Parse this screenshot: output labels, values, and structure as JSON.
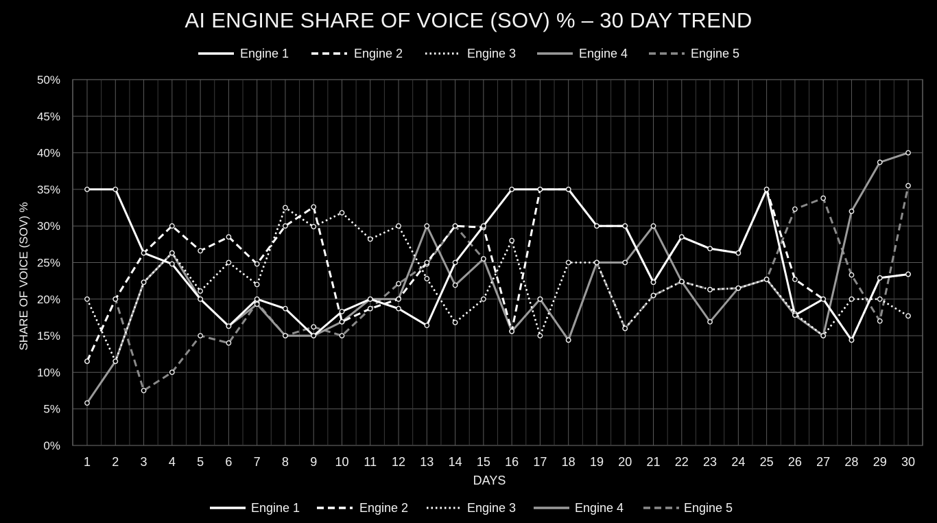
{
  "chart_data": {
    "type": "line",
    "title": "AI ENGINE SHARE OF VOICE (SOV) % – 30 DAY TREND",
    "xlabel": "DAYS",
    "ylabel": "SHARE OF VOICE (SOV) %",
    "x": [
      1,
      2,
      3,
      4,
      5,
      6,
      7,
      8,
      9,
      10,
      11,
      12,
      13,
      14,
      15,
      16,
      17,
      18,
      19,
      20,
      21,
      22,
      23,
      24,
      25,
      26,
      27,
      28,
      29,
      30
    ],
    "ylim": [
      0,
      50
    ],
    "yticks": [
      "0%",
      "5%",
      "10%",
      "15%",
      "20%",
      "25%",
      "30%",
      "35%",
      "40%",
      "45%",
      "50%"
    ],
    "grid": true,
    "legend": "top and bottom",
    "series": [
      {
        "name": "Engine 1",
        "color": "#ffffff",
        "dash": "solid",
        "values": [
          35,
          35,
          26.3,
          24.8,
          20,
          16.3,
          20,
          18.7,
          15,
          18.3,
          20,
          18.7,
          16.4,
          25,
          30,
          35,
          35,
          35,
          30,
          30,
          22.3,
          28.5,
          26.9,
          26.3,
          35,
          17.8,
          20,
          14.4,
          22.9,
          23.4
        ]
      },
      {
        "name": "Engine 2",
        "color": "#ffffff",
        "dash": "dashed",
        "values": [
          11.5,
          20,
          26.3,
          30,
          26.6,
          28.5,
          24.8,
          30,
          32.6,
          16.9,
          18.7,
          20,
          25,
          30,
          29.8,
          15.6,
          35,
          35,
          30,
          30,
          22.3,
          28.5,
          26.9,
          26.3,
          35,
          22.7,
          20,
          14.4,
          22.9,
          23.4
        ]
      },
      {
        "name": "Engine 3",
        "color": "#ffffff",
        "dash": "dotted",
        "values": [
          20,
          11.5,
          22.3,
          26.3,
          21.1,
          25,
          22,
          32.5,
          29.9,
          31.8,
          28.2,
          30,
          22.8,
          16.8,
          20,
          28,
          15,
          25,
          25,
          16,
          20.5,
          22.4,
          21.3,
          21.5,
          22.7,
          18,
          15,
          20,
          20,
          17.7
        ]
      },
      {
        "name": "Engine 4",
        "color": "#9a9a9a",
        "dash": "solid",
        "values": [
          5.8,
          11.5,
          22.3,
          26.3,
          20,
          16.3,
          19.3,
          15,
          15,
          16.9,
          20,
          20,
          30,
          21.9,
          25.5,
          15.6,
          20,
          14.4,
          25,
          25,
          30,
          22.4,
          16.9,
          21.5,
          22.7,
          17.8,
          15,
          32,
          38.7,
          40
        ]
      },
      {
        "name": "Engine 5",
        "color": "#8a8a8a",
        "dash": "dashed",
        "values": [
          11.5,
          20,
          7.5,
          10,
          15,
          14,
          19.5,
          15,
          16.2,
          15,
          18.7,
          22.1,
          24.8,
          30,
          25.5,
          15.6,
          20,
          14.4,
          25,
          16,
          20.5,
          22.4,
          21.3,
          21.5,
          22.7,
          32.3,
          33.8,
          23.3,
          17,
          35.5
        ]
      }
    ]
  }
}
